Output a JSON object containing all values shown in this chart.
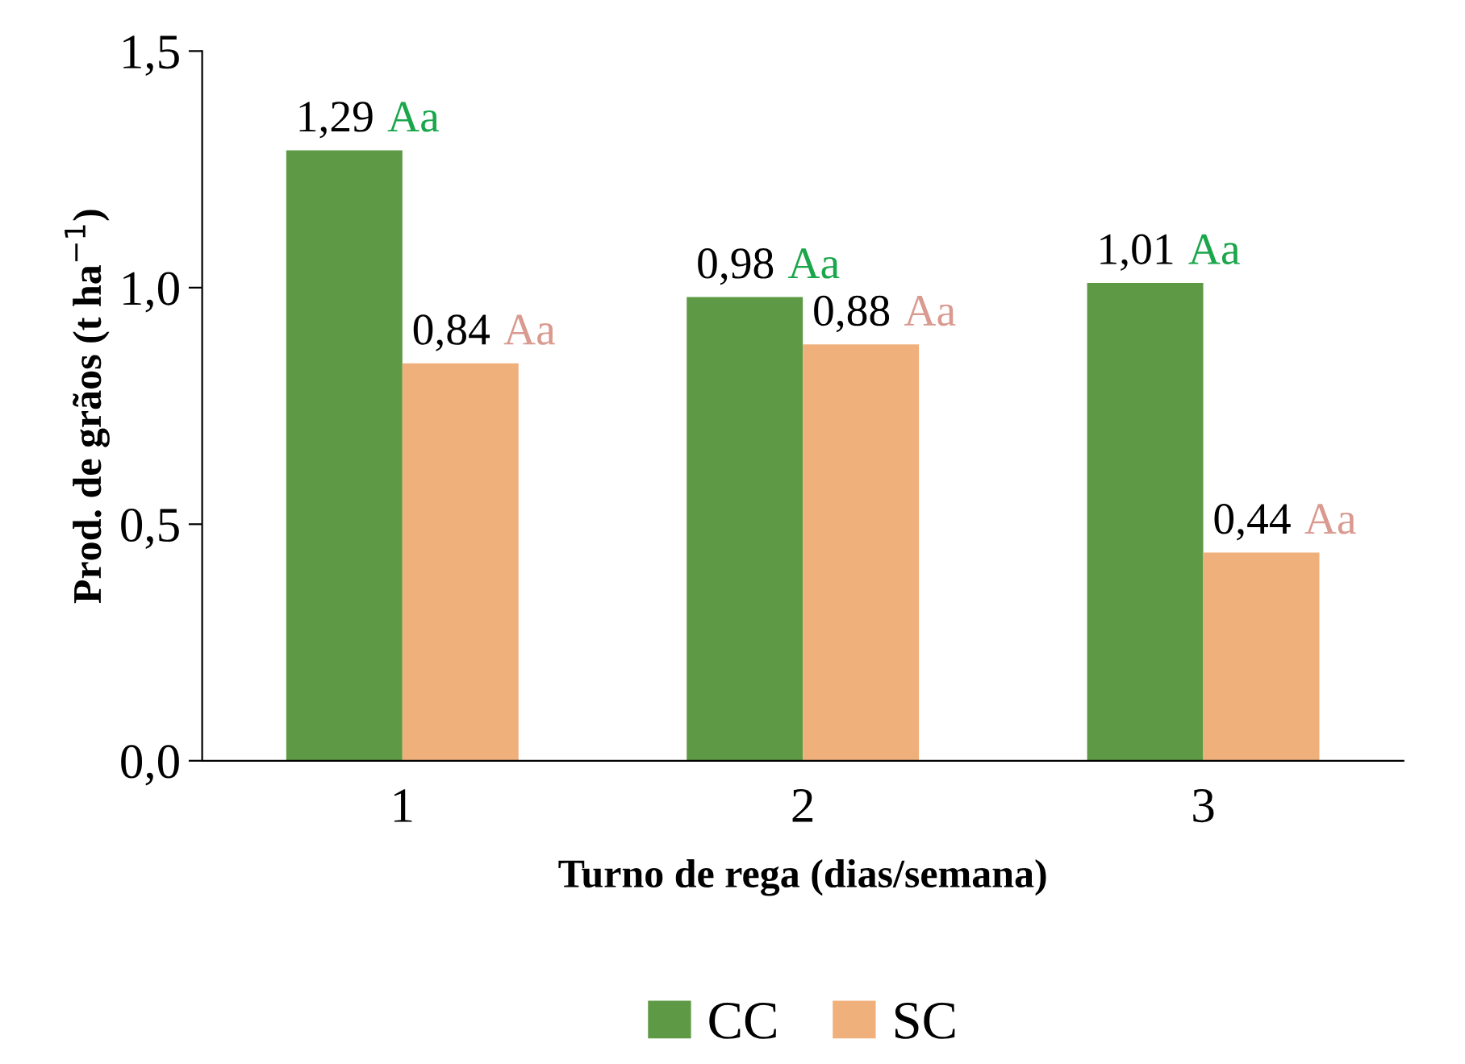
{
  "chart_data": {
    "type": "bar",
    "categories": [
      "1",
      "2",
      "3"
    ],
    "xlabel": "Turno de rega (dias/semana)",
    "ylabel": "Prod. de grãos (t ha$^{−1}$)",
    "series": [
      {
        "name": "CC",
        "color": "#5e9a45",
        "values": [
          1.29,
          0.98,
          1.01
        ],
        "value_labels": [
          "1,29",
          "0,98",
          "1,01"
        ]
      },
      {
        "name": "SC",
        "color": "#f0b07c",
        "values": [
          0.84,
          0.88,
          0.44
        ],
        "value_labels": [
          "0,84",
          "0,88",
          "0,44"
        ]
      }
    ],
    "annotations": [
      {
        "text": "Aa",
        "x": "1",
        "y": 1.29
      },
      {
        "text": "Aa",
        "x": "1",
        "y": 0.84
      },
      {
        "text": "Aa",
        "x": "2",
        "y": 0.98
      },
      {
        "text": "Aa",
        "x": "2",
        "y": 0.88
      },
      {
        "text": "Aa",
        "x": "3",
        "y": 1.01
      },
      {
        "text": "Aa",
        "x": "3",
        "y": 0.44
      }
    ],
    "ylim": [
      0,
      1.5
    ],
    "yticks": [
      {
        "value": 0,
        "label": "0,0"
      },
      {
        "value": 0.5,
        "label": "0,5"
      },
      {
        "value": 1.0,
        "label": "1,0"
      },
      {
        "value": 1.5,
        "label": "1,5"
      }
    ],
    "grid": false,
    "legend": "bottom"
  }
}
